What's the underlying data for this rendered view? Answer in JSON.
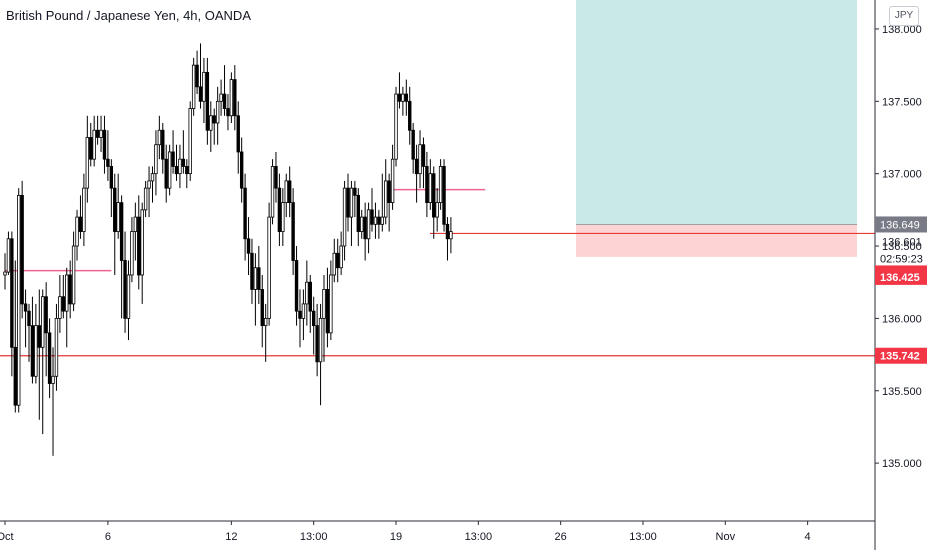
{
  "header": {
    "symbol_title": "British Pound / Japanese Yen, 4h, OANDA",
    "currency_button": "JPY"
  },
  "colors": {
    "up_candle": "#ffffff",
    "down_candle": "#000000",
    "candle_stroke": "#000000",
    "profit_zone": "#c8e9e6",
    "loss_zone": "#fdd3d3",
    "level_line": "#e53935",
    "level_label_bg": "#f23645",
    "pink_line": "#f06292",
    "price_label_bg": "#787b86"
  },
  "chart_data": {
    "type": "candlestick",
    "title": "British Pound / Japanese Yen, 4h, OANDA",
    "ylim": [
      134.6,
      138.2
    ],
    "y_ticks": [
      {
        "value": 138.0,
        "label": "138.000"
      },
      {
        "value": 137.5,
        "label": "137.500"
      },
      {
        "value": 137.0,
        "label": "137.000"
      },
      {
        "value": 136.5,
        "label": "136.500"
      },
      {
        "value": 136.0,
        "label": "136.000"
      },
      {
        "value": 135.5,
        "label": "135.500"
      },
      {
        "value": 135.0,
        "label": "135.000"
      }
    ],
    "x_ticks": [
      {
        "bar": 0,
        "label": "Oct"
      },
      {
        "bar": 30,
        "label": "6"
      },
      {
        "bar": 66,
        "label": "12"
      },
      {
        "bar": 90,
        "label": "13:00"
      },
      {
        "bar": 114,
        "label": "19"
      },
      {
        "bar": 138,
        "label": "13:00"
      },
      {
        "bar": 162,
        "label": "26"
      },
      {
        "bar": 186,
        "label": "13:00"
      },
      {
        "bar": 210,
        "label": "Nov"
      },
      {
        "bar": 234,
        "label": "4"
      }
    ],
    "candles": [
      [
        136.3,
        136.45,
        136.2,
        136.32
      ],
      [
        136.32,
        136.6,
        136.3,
        136.55
      ],
      [
        136.55,
        136.6,
        135.6,
        135.8
      ],
      [
        135.8,
        136.4,
        135.35,
        135.4
      ],
      [
        135.4,
        136.9,
        135.35,
        136.85
      ],
      [
        136.85,
        136.95,
        136.0,
        136.1
      ],
      [
        136.1,
        136.2,
        135.8,
        136.05
      ],
      [
        136.05,
        136.1,
        135.7,
        135.95
      ],
      [
        135.95,
        136.15,
        135.55,
        135.6
      ],
      [
        135.6,
        136.1,
        135.55,
        135.95
      ],
      [
        135.95,
        136.2,
        135.3,
        135.8
      ],
      [
        135.8,
        136.2,
        135.2,
        136.15
      ],
      [
        136.15,
        136.25,
        135.6,
        135.9
      ],
      [
        135.9,
        136.0,
        135.45,
        135.55
      ],
      [
        135.55,
        135.8,
        135.05,
        135.6
      ],
      [
        135.6,
        136.1,
        135.5,
        136.0
      ],
      [
        136.0,
        136.3,
        135.9,
        136.15
      ],
      [
        136.15,
        136.3,
        136.0,
        136.05
      ],
      [
        136.05,
        136.35,
        135.8,
        136.3
      ],
      [
        136.3,
        136.4,
        136.0,
        136.1
      ],
      [
        136.1,
        136.6,
        136.05,
        136.5
      ],
      [
        136.5,
        136.75,
        136.4,
        136.7
      ],
      [
        136.7,
        136.85,
        136.55,
        136.6
      ],
      [
        136.6,
        137.0,
        136.5,
        136.9
      ],
      [
        136.9,
        137.4,
        136.8,
        137.25
      ],
      [
        137.25,
        137.35,
        137.05,
        137.1
      ],
      [
        137.1,
        137.4,
        137.05,
        137.3
      ],
      [
        137.3,
        137.4,
        137.2,
        137.25
      ],
      [
        137.25,
        137.4,
        137.15,
        137.3
      ],
      [
        137.3,
        137.4,
        137.0,
        137.1
      ],
      [
        137.1,
        137.3,
        136.95,
        137.05
      ],
      [
        137.05,
        137.1,
        136.7,
        136.9
      ],
      [
        136.9,
        137.0,
        136.3,
        136.6
      ],
      [
        136.6,
        137.0,
        136.55,
        136.8
      ],
      [
        136.8,
        136.85,
        136.0,
        136.4
      ],
      [
        136.4,
        136.6,
        135.9,
        136.0
      ],
      [
        136.0,
        136.4,
        135.85,
        136.3
      ],
      [
        136.3,
        136.7,
        136.25,
        136.6
      ],
      [
        136.6,
        136.8,
        136.4,
        136.7
      ],
      [
        136.7,
        136.85,
        136.2,
        136.3
      ],
      [
        136.3,
        136.8,
        136.1,
        136.75
      ],
      [
        136.75,
        136.95,
        136.7,
        136.9
      ],
      [
        136.9,
        137.05,
        136.7,
        136.95
      ],
      [
        136.95,
        137.05,
        136.8,
        137.0
      ],
      [
        137.0,
        137.3,
        136.85,
        137.2
      ],
      [
        137.2,
        137.4,
        137.1,
        137.3
      ],
      [
        137.3,
        137.35,
        137.0,
        137.1
      ],
      [
        137.1,
        137.2,
        136.8,
        136.9
      ],
      [
        136.9,
        137.2,
        136.85,
        137.15
      ],
      [
        137.15,
        137.3,
        137.0,
        137.05
      ],
      [
        137.05,
        137.2,
        136.95,
        137.0
      ],
      [
        137.0,
        137.2,
        136.9,
        137.1
      ],
      [
        137.1,
        137.3,
        137.0,
        137.05
      ],
      [
        137.05,
        137.1,
        136.9,
        137.0
      ],
      [
        137.0,
        137.5,
        136.95,
        137.45
      ],
      [
        137.45,
        137.8,
        137.4,
        137.75
      ],
      [
        137.75,
        137.85,
        137.55,
        137.6
      ],
      [
        137.6,
        137.9,
        137.45,
        137.5
      ],
      [
        137.5,
        137.8,
        137.35,
        137.7
      ],
      [
        137.7,
        137.8,
        137.2,
        137.3
      ],
      [
        137.3,
        137.5,
        137.15,
        137.4
      ],
      [
        137.4,
        137.45,
        137.2,
        137.35
      ],
      [
        137.35,
        137.6,
        137.2,
        137.5
      ],
      [
        137.5,
        137.65,
        137.4,
        137.55
      ],
      [
        137.55,
        137.75,
        137.4,
        137.45
      ],
      [
        137.45,
        137.55,
        137.3,
        137.4
      ],
      [
        137.4,
        137.7,
        137.35,
        137.65
      ],
      [
        137.65,
        137.75,
        137.3,
        137.4
      ],
      [
        137.4,
        137.5,
        137.0,
        137.15
      ],
      [
        137.15,
        137.25,
        136.8,
        136.9
      ],
      [
        136.9,
        137.0,
        136.4,
        136.55
      ],
      [
        136.55,
        136.7,
        136.3,
        136.45
      ],
      [
        136.45,
        136.55,
        136.1,
        136.2
      ],
      [
        136.2,
        136.45,
        135.95,
        136.35
      ],
      [
        136.35,
        136.5,
        136.1,
        136.2
      ],
      [
        136.2,
        136.3,
        135.8,
        135.95
      ],
      [
        135.95,
        136.1,
        135.7,
        136.0
      ],
      [
        136.0,
        136.8,
        135.95,
        136.7
      ],
      [
        136.7,
        137.1,
        136.65,
        137.05
      ],
      [
        137.05,
        137.15,
        136.8,
        136.9
      ],
      [
        136.9,
        137.0,
        136.5,
        136.6
      ],
      [
        136.6,
        136.9,
        136.5,
        136.8
      ],
      [
        136.8,
        137.0,
        136.7,
        136.95
      ],
      [
        136.95,
        137.05,
        136.7,
        136.8
      ],
      [
        136.8,
        136.9,
        136.3,
        136.4
      ],
      [
        136.4,
        136.5,
        135.95,
        136.05
      ],
      [
        136.05,
        136.2,
        135.8,
        136.0
      ],
      [
        136.0,
        136.2,
        135.85,
        136.1
      ],
      [
        136.1,
        136.4,
        135.95,
        136.25
      ],
      [
        136.25,
        136.3,
        135.9,
        136.05
      ],
      [
        136.05,
        136.15,
        135.75,
        135.95
      ],
      [
        135.95,
        136.1,
        135.6,
        135.7
      ],
      [
        135.7,
        136.1,
        135.4,
        136.0
      ],
      [
        136.0,
        136.3,
        135.7,
        136.2
      ],
      [
        136.2,
        136.35,
        135.8,
        135.9
      ],
      [
        135.9,
        136.4,
        135.85,
        136.3
      ],
      [
        136.3,
        136.55,
        136.25,
        136.45
      ],
      [
        136.45,
        136.55,
        136.25,
        136.35
      ],
      [
        136.35,
        136.6,
        136.3,
        136.5
      ],
      [
        136.5,
        136.95,
        136.4,
        136.9
      ],
      [
        136.9,
        137.0,
        136.6,
        136.7
      ],
      [
        136.7,
        136.95,
        136.5,
        136.9
      ],
      [
        136.9,
        136.95,
        136.7,
        136.85
      ],
      [
        136.85,
        136.9,
        136.5,
        136.6
      ],
      [
        136.6,
        136.75,
        136.55,
        136.7
      ],
      [
        136.7,
        136.8,
        136.4,
        136.55
      ],
      [
        136.55,
        136.8,
        136.45,
        136.75
      ],
      [
        136.75,
        136.9,
        136.6,
        136.65
      ],
      [
        136.65,
        136.8,
        136.55,
        136.7
      ],
      [
        136.7,
        136.75,
        136.55,
        136.65
      ],
      [
        136.65,
        137.0,
        136.6,
        136.7
      ],
      [
        136.7,
        137.1,
        136.65,
        136.95
      ],
      [
        136.95,
        137.0,
        136.6,
        136.8
      ],
      [
        136.8,
        137.2,
        136.75,
        137.1
      ],
      [
        137.1,
        137.6,
        137.05,
        137.55
      ],
      [
        137.55,
        137.7,
        137.45,
        137.5
      ],
      [
        137.5,
        137.6,
        137.4,
        137.55
      ],
      [
        137.55,
        137.65,
        137.4,
        137.5
      ],
      [
        137.5,
        137.6,
        137.2,
        137.3
      ],
      [
        137.3,
        137.35,
        137.0,
        137.1
      ],
      [
        137.1,
        137.2,
        136.8,
        137.0
      ],
      [
        137.0,
        137.3,
        136.9,
        137.2
      ],
      [
        137.2,
        137.25,
        136.9,
        137.05
      ],
      [
        137.05,
        137.15,
        136.7,
        136.8
      ],
      [
        136.8,
        137.1,
        136.75,
        137.0
      ],
      [
        137.0,
        137.05,
        136.55,
        136.7
      ],
      [
        136.7,
        136.9,
        136.6,
        136.8
      ],
      [
        136.8,
        137.1,
        136.75,
        137.05
      ],
      [
        137.05,
        137.1,
        136.6,
        136.65
      ],
      [
        136.65,
        136.7,
        136.4,
        136.55
      ],
      [
        136.55,
        136.7,
        136.45,
        136.6
      ]
    ],
    "levels": [
      {
        "price": 136.587,
        "label": "136.587",
        "color": "red"
      },
      {
        "price": 135.742,
        "label": "135.742",
        "color": "red"
      }
    ],
    "position": {
      "entry": 136.649,
      "take_profit": 138.2,
      "stop_loss": 136.425
    },
    "axis_labels": [
      {
        "price": 136.649,
        "label": "136.649",
        "style": "gray"
      },
      {
        "price": 136.601,
        "label": "136.601",
        "style": "plain"
      },
      {
        "price": 136.587,
        "label": "136.587",
        "style": "red"
      },
      {
        "price": 136.425,
        "label": "136.425",
        "style": "red"
      },
      {
        "price": 135.742,
        "label": "135.742",
        "style": "red"
      }
    ],
    "countdown": "02:59:23",
    "pink_segments": [
      {
        "price": 136.33,
        "from_bar": 0,
        "to_bar": 31
      },
      {
        "price": 136.89,
        "from_bar": 112,
        "to_bar": 140
      }
    ]
  }
}
